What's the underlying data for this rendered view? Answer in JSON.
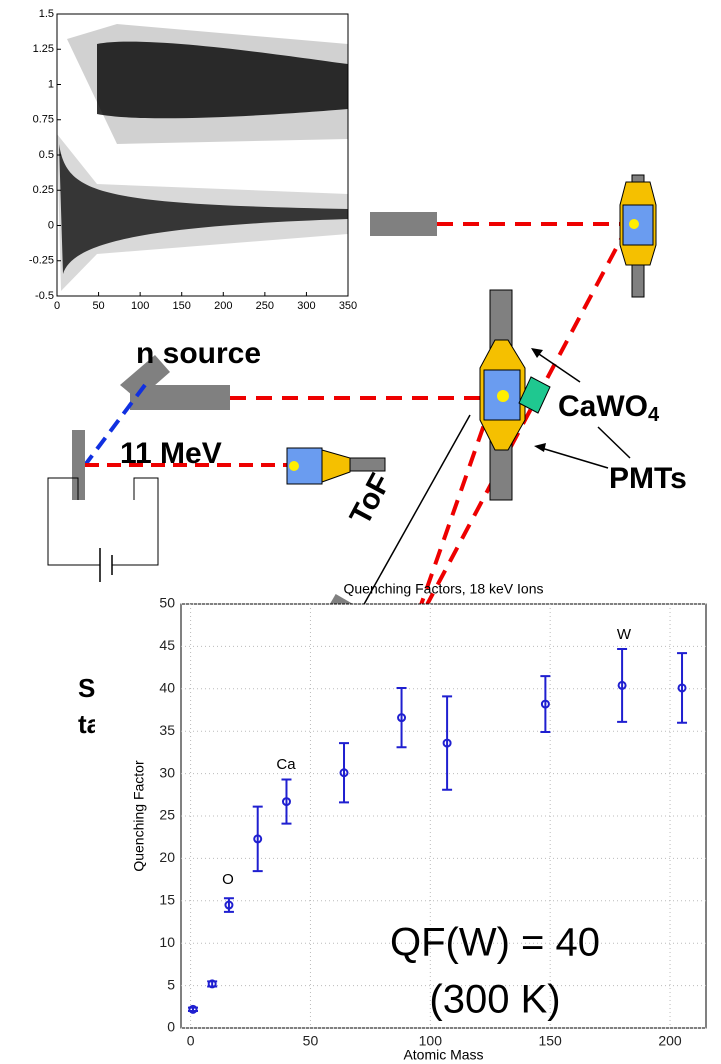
{
  "chart_data": [
    {
      "type": "scatter",
      "xlim": [
        0,
        350
      ],
      "ylim": [
        -0.5,
        1.5
      ],
      "xticks": [
        0,
        50,
        100,
        150,
        200,
        250,
        300,
        350
      ],
      "yticks": [
        -0.5,
        -0.25,
        0,
        0.25,
        0.5,
        0.75,
        1,
        1.25,
        1.5
      ]
    },
    {
      "type": "errorbar",
      "title": "Quenching Factors, 18 keV Ions",
      "xlabel": "Atomic Mass",
      "ylabel": "Quenching Factor",
      "x": [
        1,
        9,
        16,
        28,
        40,
        64,
        88,
        107,
        148,
        180,
        205
      ],
      "values": [
        2.2,
        5.2,
        14.5,
        22.3,
        26.7,
        30.1,
        36.6,
        33.6,
        38.2,
        40.4,
        40.1
      ],
      "errors": [
        0.2,
        0.3,
        0.8,
        3.8,
        2.6,
        3.5,
        3.5,
        5.5,
        3.3,
        4.3,
        4.1
      ],
      "color": "#1f1fd0",
      "grid": true,
      "xlim": [
        -4,
        215
      ],
      "ylim": [
        0,
        50
      ],
      "xticks": [
        0,
        50,
        100,
        150,
        200
      ],
      "yticks": [
        0,
        5,
        10,
        15,
        20,
        25,
        30,
        35,
        40,
        45,
        50
      ],
      "annotations": [
        "O",
        "Ca",
        "W",
        "QF(W) = 40",
        "(300 K)"
      ]
    }
  ],
  "diagram": {
    "n_source": "n source",
    "energy": "11 MeV",
    "tof": "ToF",
    "crystal": {
      "text": "CaWO",
      "subscript": "4"
    },
    "pmts": "PMTs",
    "target_1": "Sp",
    "target_2": "ta"
  }
}
